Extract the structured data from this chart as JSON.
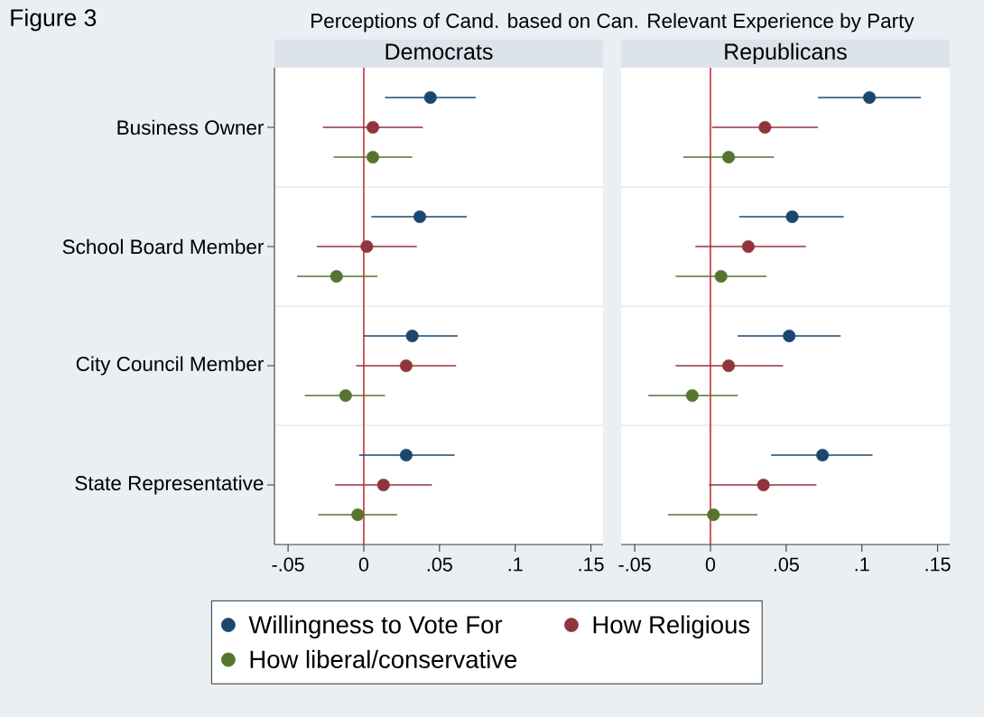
{
  "chart_data": [
    {
      "type": "scatter",
      "orientation": "horizontal",
      "title": "Democrats",
      "annotations": [
        "Figure 3",
        "Perceptions of Cand. based on Can. Relevant Experience by Party"
      ],
      "categories": [
        "Business Owner",
        "School Board Member",
        "City Council Member",
        "State Representative"
      ],
      "series": [
        {
          "name": "Willingness to Vote For",
          "color": "#1a476f",
          "values": [
            0.044,
            0.037,
            0.032,
            0.028
          ],
          "errors": [
            [
              0.014,
              0.074
            ],
            [
              0.005,
              0.068
            ],
            [
              0.0,
              0.062
            ],
            [
              -0.003,
              0.06
            ]
          ]
        },
        {
          "name": "How Religious",
          "color": "#90353b",
          "values": [
            0.006,
            0.002,
            0.028,
            0.013
          ],
          "errors": [
            [
              -0.027,
              0.039
            ],
            [
              -0.031,
              0.035
            ],
            [
              -0.005,
              0.061
            ],
            [
              -0.019,
              0.045
            ]
          ]
        },
        {
          "name": "How liberal/conservative",
          "color": "#55752f",
          "values": [
            0.006,
            -0.018,
            -0.012,
            -0.004
          ],
          "errors": [
            [
              -0.02,
              0.032
            ],
            [
              -0.044,
              0.009
            ],
            [
              -0.039,
              0.014
            ],
            [
              -0.03,
              0.022
            ]
          ]
        }
      ],
      "xlim": [
        -0.059,
        0.158
      ],
      "xticks": [
        {
          "value": -0.05,
          "label": "-.05"
        },
        0,
        {
          "value": 0.05,
          "label": ".05"
        },
        {
          "value": 0.1,
          "label": ".1"
        },
        {
          "value": 0.15,
          "label": ".15"
        }
      ],
      "ref_lines": [
        {
          "axis": "x",
          "value": 0,
          "color": "#c4303c"
        }
      ],
      "grid": "y",
      "marker": "circle",
      "legend": "bottom"
    },
    {
      "type": "scatter",
      "orientation": "horizontal",
      "title": "Republicans",
      "categories": [
        null,
        null,
        null,
        null
      ],
      "series": [
        {
          "color": "#1a476f",
          "values": [
            0.105,
            0.054,
            0.052,
            0.074
          ],
          "errors": [
            [
              0.071,
              0.139
            ],
            [
              0.019,
              0.088
            ],
            [
              0.018,
              0.086
            ],
            [
              0.04,
              0.107
            ]
          ]
        },
        {
          "color": "#90353b",
          "values": [
            0.036,
            0.025,
            0.012,
            0.035
          ],
          "errors": [
            [
              0.001,
              0.071
            ],
            [
              -0.01,
              0.063
            ],
            [
              -0.023,
              0.048
            ],
            [
              -0.001,
              0.07
            ]
          ]
        },
        {
          "color": "#55752f",
          "values": [
            0.012,
            0.007,
            -0.012,
            0.002
          ],
          "errors": [
            [
              -0.018,
              0.042
            ],
            [
              -0.023,
              0.037
            ],
            [
              -0.041,
              0.018
            ],
            [
              -0.028,
              0.031
            ]
          ]
        }
      ],
      "xlim": [
        -0.059,
        0.158
      ],
      "xticks": [
        {
          "value": -0.05,
          "label": "-.05"
        },
        0,
        {
          "value": 0.05,
          "label": ".05"
        },
        {
          "value": 0.1,
          "label": ".1"
        },
        {
          "value": 0.15,
          "label": ".15"
        }
      ],
      "ref_lines": [
        {
          "axis": "x",
          "value": 0,
          "color": "#c4303c"
        }
      ],
      "grid": "y",
      "marker": "circle",
      "tick_labels": "x"
    }
  ]
}
